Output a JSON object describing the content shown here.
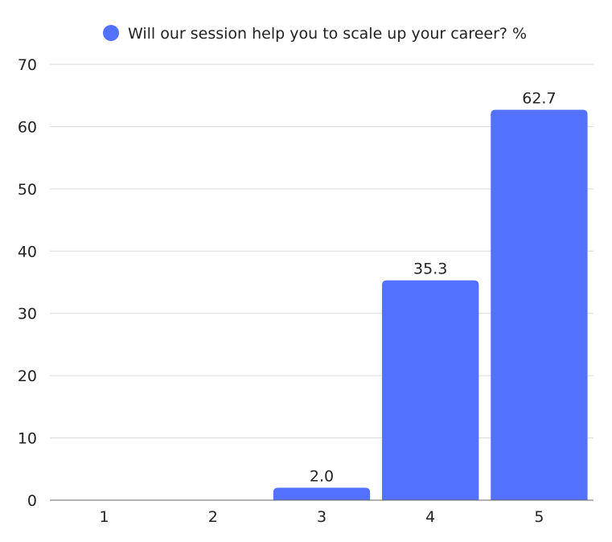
{
  "chart_data": {
    "type": "bar",
    "title": "",
    "xlabel": "",
    "ylabel": "",
    "categories": [
      "1",
      "2",
      "3",
      "4",
      "5"
    ],
    "series": [
      {
        "name": "Will our session help you to scale up your career? %",
        "values": [
          0,
          0,
          2.0,
          35.3,
          62.7
        ],
        "value_labels": [
          "",
          "",
          "2.0",
          "35.3",
          "62.7"
        ],
        "color": "#5271ff"
      }
    ],
    "ylim": [
      0,
      70
    ],
    "yticks": [
      "0",
      "10",
      "20",
      "30",
      "40",
      "50",
      "60",
      "70"
    ],
    "grid": true,
    "legend": "top-center",
    "colors": {
      "bar": "#5271ff",
      "grid": "#d9d9d9",
      "axis": "#666666",
      "text": "#222222"
    }
  }
}
